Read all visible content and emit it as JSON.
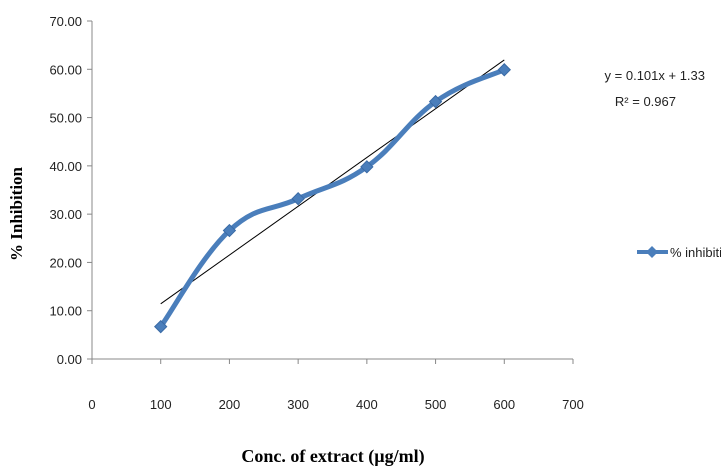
{
  "chart_data": {
    "type": "scatter",
    "title": "",
    "xlabel": "Conc. of extract (µg/ml)",
    "ylabel": "% Inhibition",
    "xlim": [
      0,
      700
    ],
    "ylim": [
      0,
      70
    ],
    "x_ticks": [
      "0",
      "100",
      "200",
      "300",
      "400",
      "500",
      "600",
      "700"
    ],
    "y_ticks": [
      "0.00",
      "10.00",
      "20.00",
      "30.00",
      "40.00",
      "50.00",
      "60.00",
      "70.00"
    ],
    "grid": false,
    "legend_position": "right",
    "series": [
      {
        "name": "% inhibition",
        "marker": "diamond",
        "smooth": true,
        "color": "#4a7ebb",
        "x": [
          100,
          200,
          300,
          400,
          500,
          600
        ],
        "y": [
          6.7,
          26.6,
          33.2,
          39.8,
          53.3,
          59.9
        ]
      }
    ],
    "trendline": {
      "type": "linear",
      "slope": 0.101,
      "intercept": 1.33,
      "x_range": [
        100,
        600
      ],
      "color": "#000000",
      "equation_label": "y = 0.101x + 1.33",
      "r2_label": "R² = 0.967"
    }
  }
}
